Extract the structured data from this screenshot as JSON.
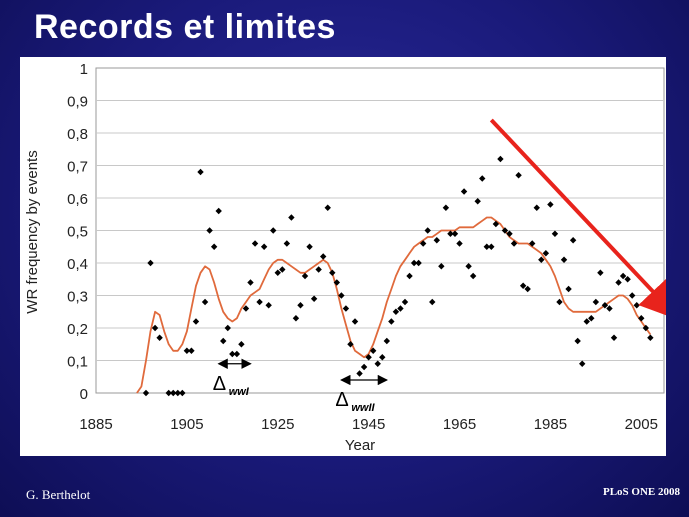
{
  "slide": {
    "title": "Records et limites",
    "footer_left": "G. Berthelot",
    "footer_right": "PLoS ONE 2008"
  },
  "chart_data": {
    "type": "scatter",
    "xlabel": "Year",
    "ylabel": "WR frequency by events",
    "xlim": [
      1885,
      2010
    ],
    "ylim": [
      0,
      1
    ],
    "xticks": [
      1885,
      1905,
      1925,
      1945,
      1965,
      1985,
      2005
    ],
    "yticks": [
      "0",
      "0,1",
      "0,2",
      "0,3",
      "0,4",
      "0,5",
      "0,6",
      "0,7",
      "0,8",
      "0,9",
      "1"
    ],
    "grid": "horizontal",
    "annotations": [
      {
        "label_main": "Δ",
        "label_sub": "wwI",
        "x_from": 1912,
        "x_to": 1919,
        "y": 0.09
      },
      {
        "label_main": "Δ",
        "label_sub": "wwII",
        "x_from": 1939,
        "x_to": 1949,
        "y": 0.04
      }
    ],
    "trend_arrow": {
      "from": [
        1972,
        0.84
      ],
      "to": [
        2010,
        0.25
      ],
      "color": "#e8231c"
    },
    "series": [
      {
        "kind": "points",
        "color": "#000000",
        "points": [
          [
            1896,
            0.0
          ],
          [
            1897,
            0.4
          ],
          [
            1898,
            0.2
          ],
          [
            1899,
            0.17
          ],
          [
            1901,
            0.0
          ],
          [
            1902,
            0.0
          ],
          [
            1903,
            0.0
          ],
          [
            1904,
            0.0
          ],
          [
            1905,
            0.13
          ],
          [
            1906,
            0.13
          ],
          [
            1907,
            0.22
          ],
          [
            1908,
            0.68
          ],
          [
            1909,
            0.28
          ],
          [
            1910,
            0.5
          ],
          [
            1911,
            0.45
          ],
          [
            1912,
            0.56
          ],
          [
            1913,
            0.16
          ],
          [
            1914,
            0.2
          ],
          [
            1915,
            0.12
          ],
          [
            1916,
            0.12
          ],
          [
            1917,
            0.15
          ],
          [
            1918,
            0.26
          ],
          [
            1919,
            0.34
          ],
          [
            1920,
            0.46
          ],
          [
            1921,
            0.28
          ],
          [
            1922,
            0.45
          ],
          [
            1923,
            0.27
          ],
          [
            1924,
            0.5
          ],
          [
            1925,
            0.37
          ],
          [
            1926,
            0.38
          ],
          [
            1927,
            0.46
          ],
          [
            1928,
            0.54
          ],
          [
            1929,
            0.23
          ],
          [
            1930,
            0.27
          ],
          [
            1931,
            0.36
          ],
          [
            1932,
            0.45
          ],
          [
            1933,
            0.29
          ],
          [
            1934,
            0.38
          ],
          [
            1935,
            0.42
          ],
          [
            1936,
            0.57
          ],
          [
            1937,
            0.37
          ],
          [
            1938,
            0.34
          ],
          [
            1939,
            0.3
          ],
          [
            1940,
            0.26
          ],
          [
            1941,
            0.15
          ],
          [
            1942,
            0.22
          ],
          [
            1943,
            0.06
          ],
          [
            1944,
            0.08
          ],
          [
            1945,
            0.11
          ],
          [
            1946,
            0.13
          ],
          [
            1947,
            0.09
          ],
          [
            1948,
            0.11
          ],
          [
            1949,
            0.16
          ],
          [
            1950,
            0.22
          ],
          [
            1951,
            0.25
          ],
          [
            1952,
            0.26
          ],
          [
            1953,
            0.28
          ],
          [
            1954,
            0.36
          ],
          [
            1955,
            0.4
          ],
          [
            1956,
            0.4
          ],
          [
            1957,
            0.46
          ],
          [
            1958,
            0.5
          ],
          [
            1959,
            0.28
          ],
          [
            1960,
            0.47
          ],
          [
            1961,
            0.39
          ],
          [
            1962,
            0.57
          ],
          [
            1963,
            0.49
          ],
          [
            1964,
            0.49
          ],
          [
            1965,
            0.46
          ],
          [
            1966,
            0.62
          ],
          [
            1967,
            0.39
          ],
          [
            1968,
            0.36
          ],
          [
            1969,
            0.59
          ],
          [
            1970,
            0.66
          ],
          [
            1971,
            0.45
          ],
          [
            1972,
            0.45
          ],
          [
            1973,
            0.52
          ],
          [
            1974,
            0.72
          ],
          [
            1975,
            0.5
          ],
          [
            1976,
            0.49
          ],
          [
            1977,
            0.46
          ],
          [
            1978,
            0.67
          ],
          [
            1979,
            0.33
          ],
          [
            1980,
            0.32
          ],
          [
            1981,
            0.46
          ],
          [
            1982,
            0.57
          ],
          [
            1983,
            0.41
          ],
          [
            1984,
            0.43
          ],
          [
            1985,
            0.58
          ],
          [
            1986,
            0.49
          ],
          [
            1987,
            0.28
          ],
          [
            1988,
            0.41
          ],
          [
            1989,
            0.32
          ],
          [
            1990,
            0.47
          ],
          [
            1991,
            0.16
          ],
          [
            1992,
            0.09
          ],
          [
            1993,
            0.22
          ],
          [
            1994,
            0.23
          ],
          [
            1995,
            0.28
          ],
          [
            1996,
            0.37
          ],
          [
            1997,
            0.27
          ],
          [
            1998,
            0.26
          ],
          [
            1999,
            0.17
          ],
          [
            2000,
            0.34
          ],
          [
            2001,
            0.36
          ],
          [
            2002,
            0.35
          ],
          [
            2003,
            0.3
          ],
          [
            2004,
            0.27
          ],
          [
            2005,
            0.23
          ],
          [
            2006,
            0.2
          ],
          [
            2007,
            0.17
          ]
        ]
      },
      {
        "kind": "smooth-line",
        "color": "#e06a3c",
        "points": [
          [
            1894,
            0.0
          ],
          [
            1895,
            0.02
          ],
          [
            1896,
            0.1
          ],
          [
            1897,
            0.19
          ],
          [
            1898,
            0.25
          ],
          [
            1899,
            0.24
          ],
          [
            1900,
            0.19
          ],
          [
            1901,
            0.15
          ],
          [
            1902,
            0.13
          ],
          [
            1903,
            0.13
          ],
          [
            1904,
            0.15
          ],
          [
            1905,
            0.19
          ],
          [
            1906,
            0.26
          ],
          [
            1907,
            0.33
          ],
          [
            1908,
            0.37
          ],
          [
            1909,
            0.39
          ],
          [
            1910,
            0.38
          ],
          [
            1911,
            0.34
          ],
          [
            1912,
            0.29
          ],
          [
            1913,
            0.25
          ],
          [
            1914,
            0.23
          ],
          [
            1915,
            0.22
          ],
          [
            1916,
            0.23
          ],
          [
            1917,
            0.26
          ],
          [
            1918,
            0.28
          ],
          [
            1919,
            0.3
          ],
          [
            1920,
            0.31
          ],
          [
            1921,
            0.32
          ],
          [
            1922,
            0.35
          ],
          [
            1923,
            0.38
          ],
          [
            1924,
            0.4
          ],
          [
            1925,
            0.41
          ],
          [
            1926,
            0.41
          ],
          [
            1927,
            0.4
          ],
          [
            1928,
            0.39
          ],
          [
            1929,
            0.38
          ],
          [
            1930,
            0.37
          ],
          [
            1931,
            0.37
          ],
          [
            1932,
            0.38
          ],
          [
            1933,
            0.39
          ],
          [
            1934,
            0.4
          ],
          [
            1935,
            0.41
          ],
          [
            1936,
            0.4
          ],
          [
            1937,
            0.37
          ],
          [
            1938,
            0.32
          ],
          [
            1939,
            0.26
          ],
          [
            1940,
            0.21
          ],
          [
            1941,
            0.16
          ],
          [
            1942,
            0.13
          ],
          [
            1943,
            0.12
          ],
          [
            1944,
            0.11
          ],
          [
            1945,
            0.12
          ],
          [
            1946,
            0.15
          ],
          [
            1947,
            0.19
          ],
          [
            1948,
            0.23
          ],
          [
            1949,
            0.28
          ],
          [
            1950,
            0.32
          ],
          [
            1951,
            0.36
          ],
          [
            1952,
            0.39
          ],
          [
            1953,
            0.41
          ],
          [
            1954,
            0.43
          ],
          [
            1955,
            0.45
          ],
          [
            1956,
            0.46
          ],
          [
            1957,
            0.47
          ],
          [
            1958,
            0.48
          ],
          [
            1959,
            0.48
          ],
          [
            1960,
            0.49
          ],
          [
            1961,
            0.5
          ],
          [
            1962,
            0.5
          ],
          [
            1963,
            0.5
          ],
          [
            1964,
            0.5
          ],
          [
            1965,
            0.51
          ],
          [
            1966,
            0.51
          ],
          [
            1967,
            0.51
          ],
          [
            1968,
            0.51
          ],
          [
            1969,
            0.52
          ],
          [
            1970,
            0.53
          ],
          [
            1971,
            0.54
          ],
          [
            1972,
            0.54
          ],
          [
            1973,
            0.53
          ],
          [
            1974,
            0.52
          ],
          [
            1975,
            0.5
          ],
          [
            1976,
            0.48
          ],
          [
            1977,
            0.47
          ],
          [
            1978,
            0.46
          ],
          [
            1979,
            0.46
          ],
          [
            1980,
            0.46
          ],
          [
            1981,
            0.45
          ],
          [
            1982,
            0.44
          ],
          [
            1983,
            0.43
          ],
          [
            1984,
            0.41
          ],
          [
            1985,
            0.39
          ],
          [
            1986,
            0.36
          ],
          [
            1987,
            0.32
          ],
          [
            1988,
            0.28
          ],
          [
            1989,
            0.26
          ],
          [
            1990,
            0.25
          ],
          [
            1991,
            0.25
          ],
          [
            1992,
            0.25
          ],
          [
            1993,
            0.25
          ],
          [
            1994,
            0.25
          ],
          [
            1995,
            0.25
          ],
          [
            1996,
            0.26
          ],
          [
            1997,
            0.27
          ],
          [
            1998,
            0.28
          ],
          [
            1999,
            0.29
          ],
          [
            2000,
            0.3
          ],
          [
            2001,
            0.3
          ],
          [
            2002,
            0.29
          ],
          [
            2003,
            0.27
          ],
          [
            2004,
            0.24
          ],
          [
            2005,
            0.22
          ],
          [
            2006,
            0.2
          ],
          [
            2007,
            0.18
          ]
        ]
      }
    ]
  }
}
